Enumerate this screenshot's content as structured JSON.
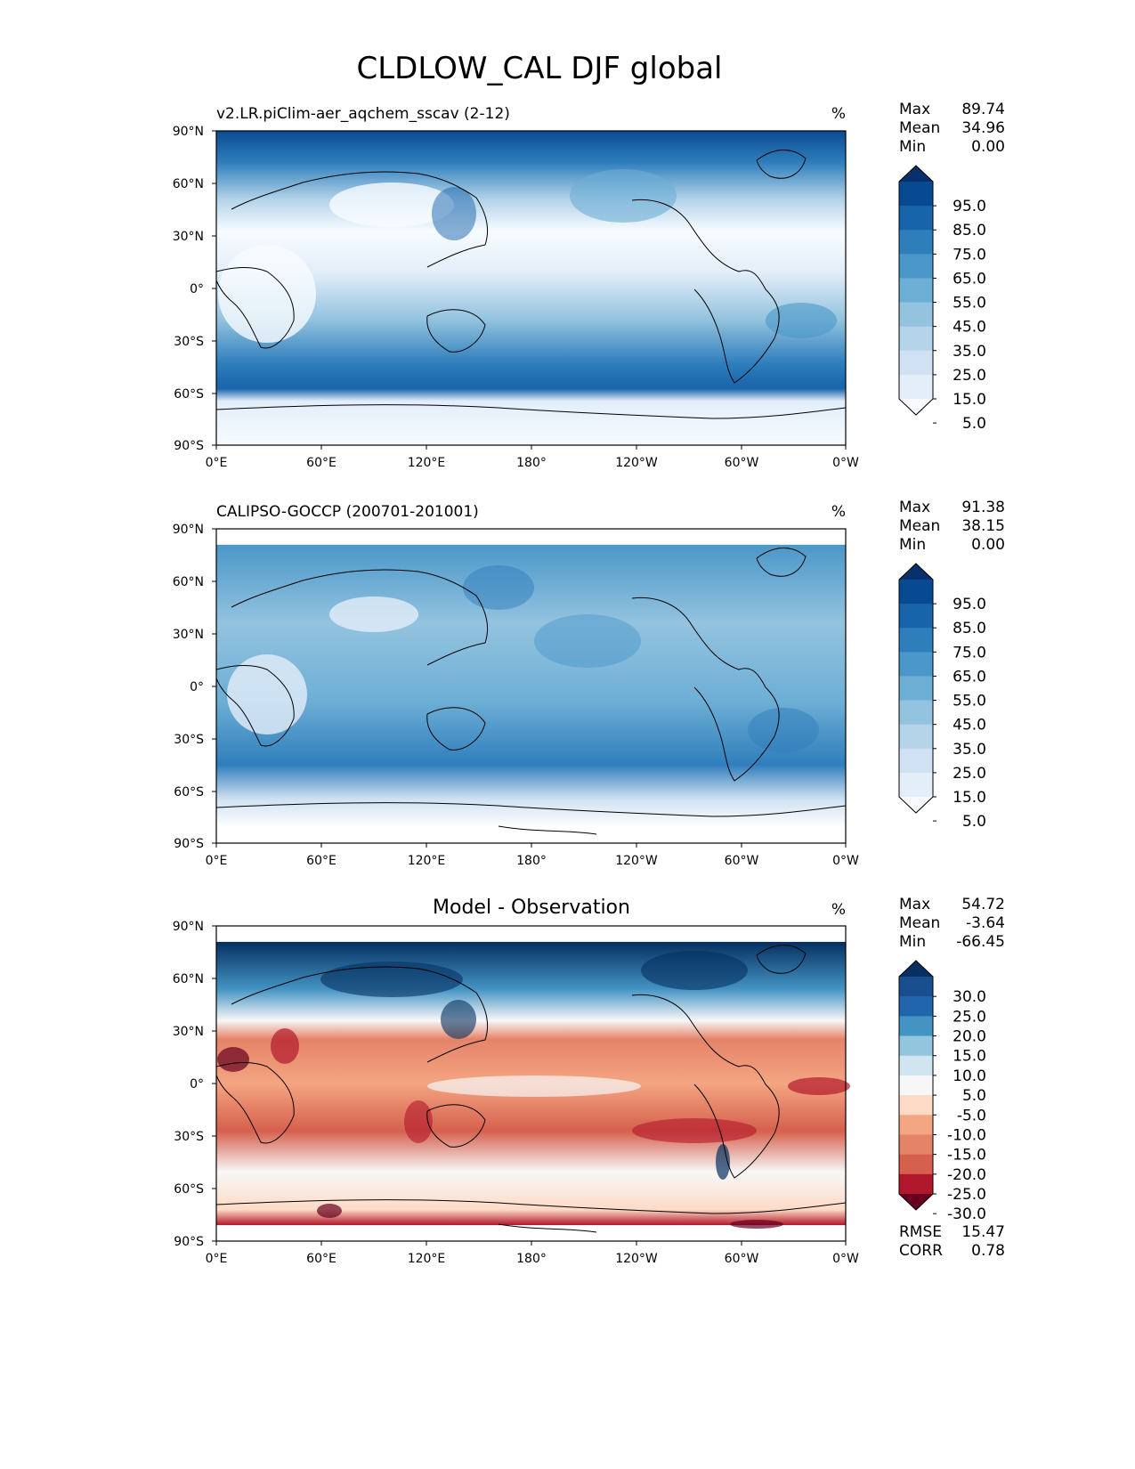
{
  "title": "CLDLOW_CAL DJF global",
  "axes": {
    "lat_ticks": [
      "90°N",
      "60°N",
      "30°N",
      "0°",
      "30°S",
      "60°S",
      "90°S"
    ],
    "lon_ticks": [
      "0°E",
      "60°E",
      "120°E",
      "180°",
      "120°W",
      "60°W",
      "0°W"
    ]
  },
  "panels": [
    {
      "left_title": "v2.LR.piClim-aer_aqchem_sscav (2-12)",
      "center_title": "",
      "units": "%",
      "stats": [
        {
          "label": "Max",
          "value": "89.74"
        },
        {
          "label": "Mean",
          "value": "34.96"
        },
        {
          "label": "Min",
          "value": "0.00"
        }
      ],
      "colorbar": {
        "labels": [
          "95.0",
          "85.0",
          "75.0",
          "65.0",
          "55.0",
          "45.0",
          "35.0",
          "25.0",
          "15.0",
          "5.0"
        ],
        "colors": [
          "#f7fbff",
          "#e3eef9",
          "#cfe1f2",
          "#b5d4e9",
          "#93c3df",
          "#6daed5",
          "#4b97c9",
          "#2f7ebc",
          "#1764ab",
          "#084a91",
          "#08306b"
        ]
      },
      "footer": []
    },
    {
      "left_title": "CALIPSO-GOCCP (200701-201001)",
      "center_title": "",
      "units": "%",
      "stats": [
        {
          "label": "Max",
          "value": "91.38"
        },
        {
          "label": "Mean",
          "value": "38.15"
        },
        {
          "label": "Min",
          "value": "0.00"
        }
      ],
      "colorbar": {
        "labels": [
          "95.0",
          "85.0",
          "75.0",
          "65.0",
          "55.0",
          "45.0",
          "35.0",
          "25.0",
          "15.0",
          "5.0"
        ],
        "colors": [
          "#f7fbff",
          "#e3eef9",
          "#cfe1f2",
          "#b5d4e9",
          "#93c3df",
          "#6daed5",
          "#4b97c9",
          "#2f7ebc",
          "#1764ab",
          "#084a91",
          "#08306b"
        ]
      },
      "footer": []
    },
    {
      "left_title": "",
      "center_title": "Model - Observation",
      "units": "%",
      "stats": [
        {
          "label": "Max",
          "value": "54.72"
        },
        {
          "label": "Mean",
          "value": "-3.64"
        },
        {
          "label": "Min",
          "value": "-66.45"
        }
      ],
      "colorbar": {
        "labels": [
          "30.0",
          "25.0",
          "20.0",
          "15.0",
          "10.0",
          "5.0",
          "-5.0",
          "-10.0",
          "-15.0",
          "-20.0",
          "-25.0",
          "-30.0"
        ],
        "colors": [
          "#67001f",
          "#b2182b",
          "#d6604d",
          "#e58368",
          "#f4a582",
          "#fddbc7",
          "#f7f7f7",
          "#d1e5f0",
          "#92c5de",
          "#4393c3",
          "#2166ac",
          "#1a4f8f",
          "#053061"
        ]
      },
      "footer": [
        {
          "label": "RMSE",
          "value": "15.47"
        },
        {
          "label": "CORR",
          "value": "0.78"
        }
      ]
    }
  ]
}
